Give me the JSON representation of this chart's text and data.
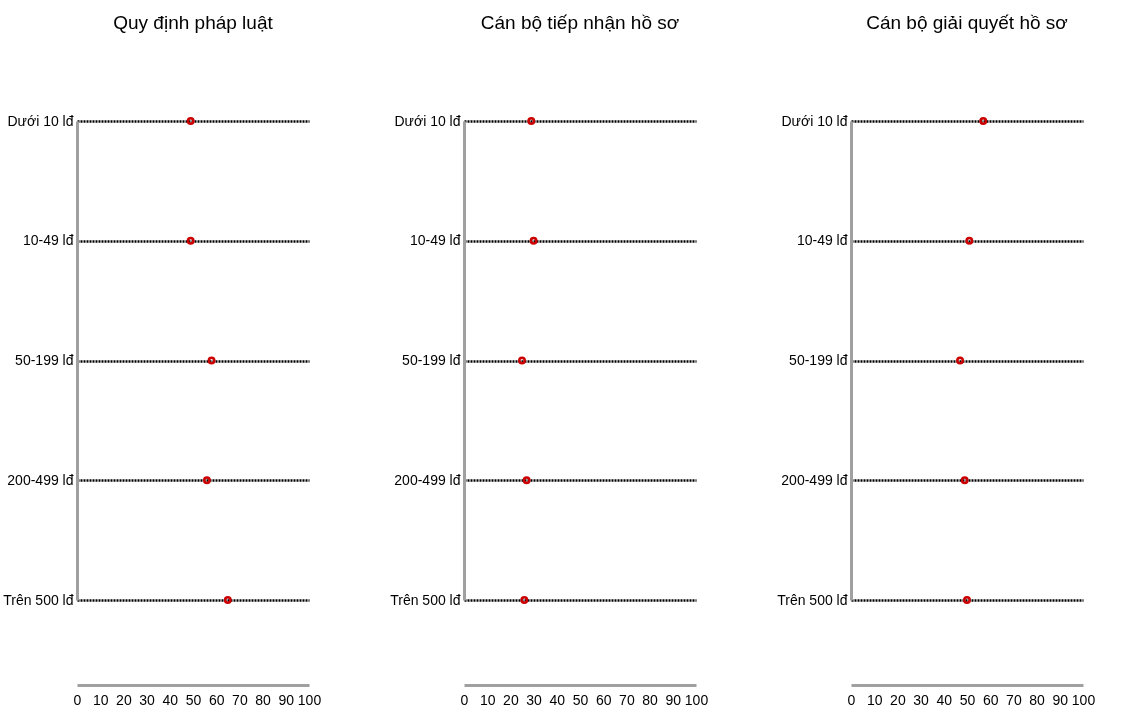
{
  "chart_data": [
    {
      "type": "scatter",
      "title": "Quy định pháp luật",
      "orientation": "horizontal",
      "categories": [
        "Dưới 10 lđ",
        "10-49 lđ",
        "50-199 lđ",
        "200-499 lđ",
        "Trên 500 lđ"
      ],
      "values": [
        49,
        49,
        58,
        56,
        65
      ],
      "color": "#cc0000",
      "marker": "circle",
      "grid": "y",
      "xlim": [
        0,
        100
      ],
      "xticks": [
        0,
        10,
        20,
        30,
        40,
        50,
        60,
        70,
        80,
        90,
        100
      ]
    },
    {
      "type": "scatter",
      "title": "Cán bộ tiếp nhận hồ sơ",
      "orientation": "horizontal",
      "categories": [
        "Dưới 10 lđ",
        "10-49 lđ",
        "50-199 lđ",
        "200-499 lđ",
        "Trên 500 lđ"
      ],
      "values": [
        29,
        30,
        25,
        27,
        26
      ],
      "color": "#cc0000",
      "marker": "circle",
      "grid": "y",
      "xlim": [
        0,
        100
      ],
      "xticks": [
        0,
        10,
        20,
        30,
        40,
        50,
        60,
        70,
        80,
        90,
        100
      ]
    },
    {
      "type": "scatter",
      "title": "Cán bộ giải quyết hồ sơ",
      "orientation": "horizontal",
      "categories": [
        "Dưới 10 lđ",
        "10-49 lđ",
        "50-199 lđ",
        "200-499 lđ",
        "Trên 500 lđ"
      ],
      "values": [
        57,
        51,
        47,
        49,
        50
      ],
      "color": "#cc0000",
      "marker": "circle",
      "grid": "y",
      "xlim": [
        0,
        100
      ],
      "xticks": [
        0,
        10,
        20,
        30,
        40,
        50,
        60,
        70,
        80,
        90,
        100
      ]
    }
  ]
}
